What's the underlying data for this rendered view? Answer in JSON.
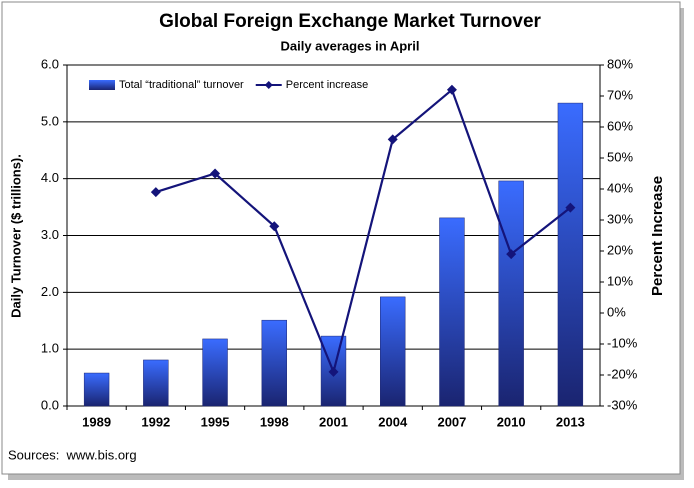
{
  "chart_data": {
    "type": "bar",
    "title": "Global Foreign Exchange Market Turnover",
    "subtitle": "Daily averages in April",
    "y_label": "Daily Turnover ($ trillions).",
    "y2_label": "Percent Increase",
    "source": "Sources:  www.bis.org",
    "categories": [
      "1989",
      "1992",
      "1995",
      "1998",
      "2001",
      "2004",
      "2007",
      "2010",
      "2013"
    ],
    "series": [
      {
        "name": "Total “traditional” turnover",
        "type": "bar",
        "color": "#2f5ef0",
        "values": [
          0.58,
          0.81,
          1.18,
          1.51,
          1.23,
          1.92,
          3.31,
          3.96,
          5.33
        ]
      },
      {
        "name": "Percent increase",
        "type": "line",
        "axis": "y2",
        "color": "#14147a",
        "values": [
          null,
          39,
          45,
          28,
          -19,
          56,
          72,
          19,
          34
        ]
      }
    ],
    "ylim": [
      0,
      6
    ],
    "yticks": [
      {
        "value": 0,
        "label": "0.0"
      },
      {
        "value": 1,
        "label": "1.0"
      },
      {
        "value": 2,
        "label": "2.0"
      },
      {
        "value": 3,
        "label": "3.0"
      },
      {
        "value": 4,
        "label": "4.0"
      },
      {
        "value": 5,
        "label": "5.0"
      },
      {
        "value": 6,
        "label": "6.0"
      }
    ],
    "y2lim": [
      -30,
      80
    ],
    "y2ticks": [
      {
        "value": -30,
        "label": "-30%"
      },
      {
        "value": -20,
        "label": "-20%"
      },
      {
        "value": -10,
        "label": "-10%"
      },
      {
        "value": 0,
        "label": "0%"
      },
      {
        "value": 10,
        "label": "10%"
      },
      {
        "value": 20,
        "label": "20%"
      },
      {
        "value": 30,
        "label": "30%"
      },
      {
        "value": 40,
        "label": "40%"
      },
      {
        "value": 50,
        "label": "50%"
      },
      {
        "value": 60,
        "label": "60%"
      },
      {
        "value": 70,
        "label": "70%"
      },
      {
        "value": 80,
        "label": "80%"
      }
    ],
    "grid": true,
    "legend": "top-left"
  }
}
